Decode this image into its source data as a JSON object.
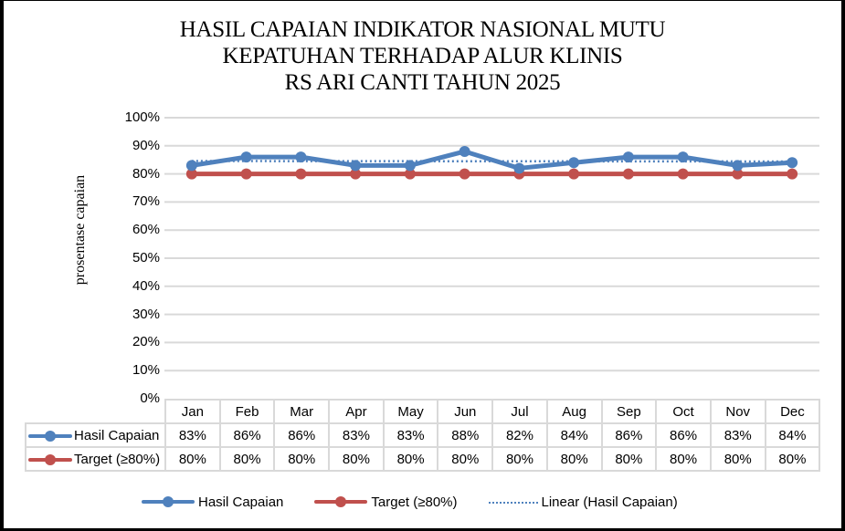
{
  "chart_data": {
    "type": "line",
    "title": "HASIL CAPAIAN INDIKATOR NASIONAL MUTU KEPATUHAN TERHADAP ALUR KLINIS RS ARI CANTI TAHUN 2025",
    "title_lines": [
      "HASIL CAPAIAN INDIKATOR NASIONAL MUTU",
      "KEPATUHAN TERHADAP ALUR KLINIS",
      "RS ARI CANTI TAHUN 2025"
    ],
    "xlabel": "",
    "ylabel": "prosentase capaian",
    "ylim": [
      0,
      100
    ],
    "yticks": [
      "100%",
      "90%",
      "80%",
      "70%",
      "60%",
      "50%",
      "40%",
      "30%",
      "20%",
      "10%",
      "0%"
    ],
    "grid": true,
    "legend_position": "bottom",
    "categories": [
      "Jan",
      "Feb",
      "Mar",
      "Apr",
      "May",
      "Jun",
      "Jul",
      "Aug",
      "Sep",
      "Oct",
      "Nov",
      "Dec"
    ],
    "series": [
      {
        "name": "Hasil Capaian",
        "color": "#4f81bd",
        "marker": "circle",
        "values": [
          83,
          86,
          86,
          83,
          83,
          88,
          82,
          84,
          86,
          86,
          83,
          84
        ],
        "labels": [
          "83%",
          "86%",
          "86%",
          "83%",
          "83%",
          "88%",
          "82%",
          "84%",
          "86%",
          "86%",
          "83%",
          "84%"
        ]
      },
      {
        "name": "Target (≥80%)",
        "color": "#c0504d",
        "marker": "circle",
        "values": [
          80,
          80,
          80,
          80,
          80,
          80,
          80,
          80,
          80,
          80,
          80,
          80
        ],
        "labels": [
          "80%",
          "80%",
          "80%",
          "80%",
          "80%",
          "80%",
          "80%",
          "80%",
          "80%",
          "80%",
          "80%",
          "80%"
        ]
      },
      {
        "name": "Linear (Hasil Capaian)",
        "color": "#4f81bd",
        "style": "dotted",
        "type": "trendline"
      }
    ],
    "data_table": true
  },
  "legend": {
    "items": [
      "Hasil Capaian",
      "Target (≥80%)",
      "Linear (Hasil Capaian)"
    ]
  }
}
